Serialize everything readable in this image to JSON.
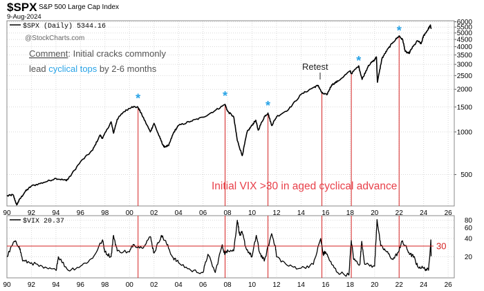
{
  "header": {
    "symbol": "$SPX",
    "name": "S&P 500 Large Cap Index",
    "date": "9-Aug-2024"
  },
  "chart_data": [
    {
      "type": "line",
      "title": "$SPX (Daily) 5344.16",
      "watermark": "@StockCharts.com",
      "yscale": "log",
      "ylim": [
        300,
        6100
      ],
      "xlim": [
        1990,
        2026.5
      ],
      "y_ticks": [
        500,
        1000,
        1500,
        2000,
        2500,
        3000,
        3500,
        4000,
        4500,
        5000,
        5500,
        6000
      ],
      "x_tick_labels": [
        "90",
        "92",
        "94",
        "96",
        "98",
        "00",
        "02",
        "04",
        "06",
        "08",
        "10",
        "12",
        "14",
        "16",
        "18",
        "20",
        "22",
        "24",
        "26"
      ],
      "series": [
        {
          "name": "$SPX",
          "points": [
            [
              1990.0,
              353
            ],
            [
              1990.5,
              360
            ],
            [
              1990.8,
              305
            ],
            [
              1991.0,
              330
            ],
            [
              1991.5,
              380
            ],
            [
              1992.0,
              415
            ],
            [
              1993.0,
              440
            ],
            [
              1994.0,
              470
            ],
            [
              1994.8,
              455
            ],
            [
              1995.0,
              465
            ],
            [
              1996.0,
              615
            ],
            [
              1997.0,
              745
            ],
            [
              1997.6,
              950
            ],
            [
              1997.8,
              900
            ],
            [
              1998.5,
              1180
            ],
            [
              1998.7,
              980
            ],
            [
              1999.0,
              1230
            ],
            [
              1999.5,
              1380
            ],
            [
              2000.2,
              1510
            ],
            [
              2000.7,
              1490
            ],
            [
              2001.0,
              1330
            ],
            [
              2001.7,
              1000
            ],
            [
              2002.0,
              1150
            ],
            [
              2002.5,
              900
            ],
            [
              2002.8,
              785
            ],
            [
              2003.2,
              800
            ],
            [
              2003.6,
              990
            ],
            [
              2004.0,
              1110
            ],
            [
              2005.0,
              1190
            ],
            [
              2006.0,
              1270
            ],
            [
              2007.0,
              1420
            ],
            [
              2007.8,
              1565
            ],
            [
              2008.0,
              1400
            ],
            [
              2008.5,
              1280
            ],
            [
              2008.8,
              870
            ],
            [
              2009.2,
              680
            ],
            [
              2009.6,
              1000
            ],
            [
              2010.0,
              1115
            ],
            [
              2010.3,
              1210
            ],
            [
              2010.5,
              1030
            ],
            [
              2011.0,
              1280
            ],
            [
              2011.3,
              1360
            ],
            [
              2011.6,
              1110
            ],
            [
              2012.0,
              1280
            ],
            [
              2013.0,
              1450
            ],
            [
              2014.0,
              1840
            ],
            [
              2015.0,
              2060
            ],
            [
              2015.4,
              2130
            ],
            [
              2015.7,
              1880
            ],
            [
              2016.1,
              1830
            ],
            [
              2016.5,
              2150
            ],
            [
              2017.0,
              2280
            ],
            [
              2018.0,
              2700
            ],
            [
              2018.1,
              2580
            ],
            [
              2018.7,
              2930
            ],
            [
              2018.98,
              2350
            ],
            [
              2019.5,
              2950
            ],
            [
              2020.0,
              3230
            ],
            [
              2020.15,
              3390
            ],
            [
              2020.23,
              2240
            ],
            [
              2020.6,
              3300
            ],
            [
              2021.0,
              3760
            ],
            [
              2021.5,
              4300
            ],
            [
              2022.0,
              4770
            ],
            [
              2022.3,
              4450
            ],
            [
              2022.5,
              3700
            ],
            [
              2022.8,
              3580
            ],
            [
              2023.0,
              3850
            ],
            [
              2023.5,
              4400
            ],
            [
              2023.8,
              4200
            ],
            [
              2024.0,
              4780
            ],
            [
              2024.3,
              5200
            ],
            [
              2024.55,
              5660
            ],
            [
              2024.61,
              5344
            ]
          ]
        }
      ],
      "markers": [
        {
          "label": "*",
          "x": 2000.7,
          "y": 1760
        },
        {
          "label": "*",
          "x": 2007.8,
          "y": 1830
        },
        {
          "label": "*",
          "x": 2011.3,
          "y": 1570
        },
        {
          "label": "*",
          "x": 2018.7,
          "y": 3250
        },
        {
          "label": "*",
          "x": 2022.0,
          "y": 5300
        }
      ],
      "vertical_lines": [
        2000.7,
        2007.8,
        2011.3,
        2015.7,
        2018.1,
        2022.0
      ],
      "annotations": {
        "comment_label": "Comment",
        "comment_line1_rest": ": Initial cracks commonly",
        "comment_line2_pre": "lead ",
        "comment_line2_highlight": "cyclical tops",
        "comment_line2_post": " by 2-6 months",
        "retest": "Retest",
        "vix_note": "Initial VIX >30 in aged cyclical advance"
      },
      "colors": {
        "line": "#000000",
        "marker": "#29a3e6",
        "vertical_lines": "#d42020",
        "vix_note": "#e8404a",
        "highlight": "#29a3e6",
        "comment": "#555555"
      }
    },
    {
      "type": "line",
      "title": "$VIX 20.37",
      "yscale": "log",
      "ylim": [
        9,
        95
      ],
      "xlim": [
        1990,
        2026.5
      ],
      "y_ticks": [
        20,
        40,
        60,
        80
      ],
      "x_tick_labels": [
        "90",
        "92",
        "94",
        "96",
        "98",
        "00",
        "02",
        "04",
        "06",
        "08",
        "10",
        "12",
        "14",
        "16",
        "18",
        "20",
        "22",
        "24",
        "26"
      ],
      "series": [
        {
          "name": "$VIX",
          "points": [
            [
              1990.0,
              20
            ],
            [
              1990.6,
              36
            ],
            [
              1991.0,
              30
            ],
            [
              1991.3,
              17
            ],
            [
              1992.0,
              16
            ],
            [
              1993.0,
              13
            ],
            [
              1994.0,
              12
            ],
            [
              1994.2,
              20
            ],
            [
              1995.0,
              12
            ],
            [
              1996.0,
              14
            ],
            [
              1997.0,
              19
            ],
            [
              1997.8,
              38
            ],
            [
              1998.0,
              24
            ],
            [
              1998.5,
              20
            ],
            [
              1998.7,
              45
            ],
            [
              1999.0,
              25
            ],
            [
              2000.0,
              24
            ],
            [
              2000.3,
              32
            ],
            [
              2001.0,
              28
            ],
            [
              2001.7,
              43
            ],
            [
              2002.0,
              23
            ],
            [
              2002.6,
              45
            ],
            [
              2003.0,
              34
            ],
            [
              2003.5,
              20
            ],
            [
              2004.0,
              16
            ],
            [
              2005.0,
              12
            ],
            [
              2006.0,
              11
            ],
            [
              2006.4,
              22
            ],
            [
              2007.0,
              11
            ],
            [
              2007.55,
              31
            ],
            [
              2007.8,
              22
            ],
            [
              2008.0,
              26
            ],
            [
              2008.5,
              25
            ],
            [
              2008.8,
              80
            ],
            [
              2009.0,
              45
            ],
            [
              2009.2,
              50
            ],
            [
              2009.5,
              28
            ],
            [
              2010.0,
              20
            ],
            [
              2010.35,
              45
            ],
            [
              2010.6,
              24
            ],
            [
              2011.0,
              17
            ],
            [
              2011.6,
              48
            ],
            [
              2011.9,
              30
            ],
            [
              2012.0,
              20
            ],
            [
              2013.0,
              14
            ],
            [
              2014.0,
              13
            ],
            [
              2015.0,
              15
            ],
            [
              2015.6,
              40
            ],
            [
              2015.8,
              22
            ],
            [
              2016.0,
              24
            ],
            [
              2016.5,
              15
            ],
            [
              2017.0,
              11
            ],
            [
              2017.9,
              10
            ],
            [
              2018.1,
              37
            ],
            [
              2018.3,
              18
            ],
            [
              2018.8,
              15
            ],
            [
              2018.95,
              36
            ],
            [
              2019.2,
              15
            ],
            [
              2020.0,
              14
            ],
            [
              2020.2,
              82
            ],
            [
              2020.5,
              30
            ],
            [
              2021.0,
              24
            ],
            [
              2021.5,
              18
            ],
            [
              2022.0,
              25
            ],
            [
              2022.2,
              36
            ],
            [
              2022.5,
              30
            ],
            [
              2022.9,
              22
            ],
            [
              2023.2,
              20
            ],
            [
              2023.5,
              14
            ],
            [
              2024.0,
              13
            ],
            [
              2024.4,
              12
            ],
            [
              2024.59,
              38
            ],
            [
              2024.61,
              20.37
            ]
          ]
        }
      ],
      "reference_line": {
        "value": 30,
        "label": "30",
        "color": "#d42020"
      }
    }
  ]
}
